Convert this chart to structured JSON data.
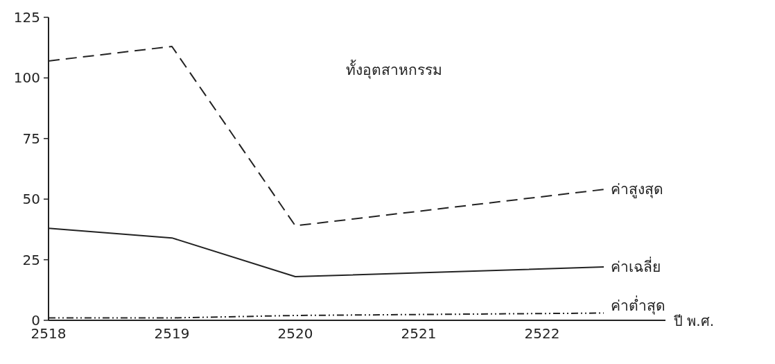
{
  "chart_data": {
    "type": "line",
    "title": "ทั้งอุตสาหกรรม",
    "xlabel": "ปี พ.ศ.",
    "x": [
      2518,
      2519,
      2520,
      2522.5
    ],
    "series": [
      {
        "name": "ค่าสูงสุด",
        "color": "#222222",
        "line_style": "dashed",
        "values": [
          107,
          113,
          39,
          54
        ]
      },
      {
        "name": "ค่าเฉลี่ย",
        "color": "#222222",
        "line_style": "solid",
        "values": [
          38,
          34,
          18,
          22
        ]
      },
      {
        "name": "ค่าต่ำสุด",
        "color": "#222222",
        "line_style": "dotted",
        "values": [
          1,
          1,
          2,
          3
        ]
      }
    ],
    "xlim": [
      2518,
      2523
    ],
    "xticks": [
      2518,
      2519,
      2520,
      2521,
      2522
    ],
    "ylim": [
      0,
      125
    ],
    "yticks": [
      0,
      25,
      50,
      75,
      100,
      125
    ],
    "grid": false,
    "legend": "right",
    "marker": "none"
  }
}
